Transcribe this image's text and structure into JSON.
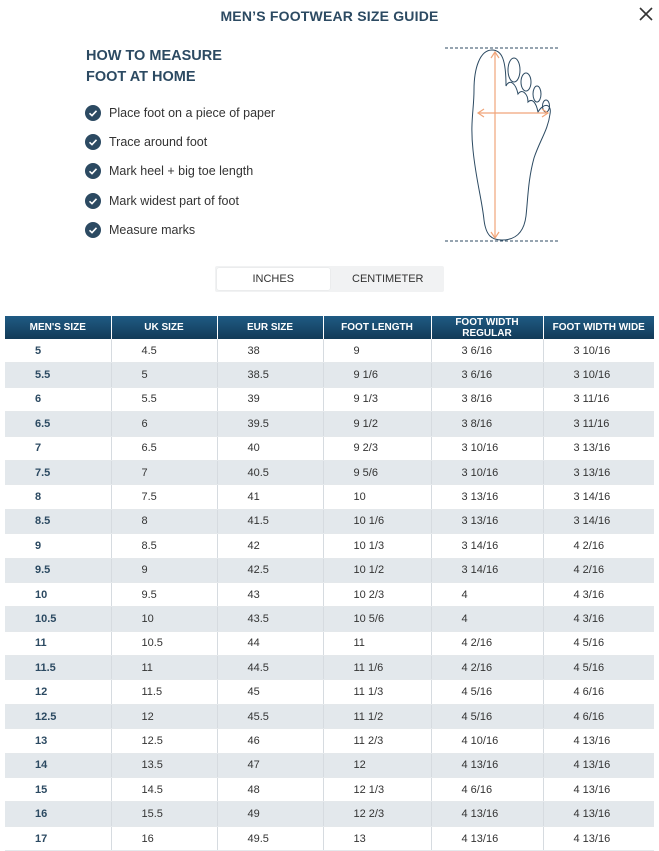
{
  "title": "MEN’S FOOTWEAR SIZE GUIDE",
  "measure": {
    "heading_line1": "HOW TO MEASURE",
    "heading_line2": "FOOT AT HOME",
    "steps": [
      "Place foot on a piece of paper",
      "Trace around foot",
      "Mark heel + big toe length",
      "Mark widest part of foot",
      "Measure marks"
    ]
  },
  "units": {
    "inches": "INCHES",
    "centimeter": "CENTIMETER",
    "selected": "INCHES"
  },
  "icons": {
    "close": "close-icon",
    "check": "check-circle-icon",
    "foot": "foot-diagram-icon"
  },
  "colors": {
    "accent": "#2c4a62",
    "header": "#1a4c70",
    "measure_line": "#f0a57a",
    "row_alt": "#e3e8ec"
  },
  "table": {
    "headers": [
      "MEN'S SIZE",
      "UK SIZE",
      "EUR SIZE",
      "FOOT LENGTH",
      "FOOT WIDTH REGULAR",
      "FOOT WIDTH WIDE"
    ],
    "rows": [
      [
        "5",
        "4.5",
        "38",
        "9",
        "3 6/16",
        "3 10/16"
      ],
      [
        "5.5",
        "5",
        "38.5",
        "9 1/6",
        "3 6/16",
        "3 10/16"
      ],
      [
        "6",
        "5.5",
        "39",
        "9 1/3",
        "3 8/16",
        "3 11/16"
      ],
      [
        "6.5",
        "6",
        "39.5",
        "9 1/2",
        "3 8/16",
        "3 11/16"
      ],
      [
        "7",
        "6.5",
        "40",
        "9 2/3",
        "3 10/16",
        "3 13/16"
      ],
      [
        "7.5",
        "7",
        "40.5",
        "9 5/6",
        "3 10/16",
        "3 13/16"
      ],
      [
        "8",
        "7.5",
        "41",
        "10",
        "3 13/16",
        "3 14/16"
      ],
      [
        "8.5",
        "8",
        "41.5",
        "10 1/6",
        "3 13/16",
        "3 14/16"
      ],
      [
        "9",
        "8.5",
        "42",
        "10 1/3",
        "3 14/16",
        "4 2/16"
      ],
      [
        "9.5",
        "9",
        "42.5",
        "10 1/2",
        "3 14/16",
        "4 2/16"
      ],
      [
        "10",
        "9.5",
        "43",
        "10 2/3",
        "4",
        "4 3/16"
      ],
      [
        "10.5",
        "10",
        "43.5",
        "10 5/6",
        "4",
        "4 3/16"
      ],
      [
        "11",
        "10.5",
        "44",
        "11",
        "4 2/16",
        "4 5/16"
      ],
      [
        "11.5",
        "11",
        "44.5",
        "11 1/6",
        "4 2/16",
        "4 5/16"
      ],
      [
        "12",
        "11.5",
        "45",
        "11 1/3",
        "4 5/16",
        "4 6/16"
      ],
      [
        "12.5",
        "12",
        "45.5",
        "11 1/2",
        "4 5/16",
        "4 6/16"
      ],
      [
        "13",
        "12.5",
        "46",
        "11 2/3",
        "4 10/16",
        "4 13/16"
      ],
      [
        "14",
        "13.5",
        "47",
        "12",
        "4 13/16",
        "4 13/16"
      ],
      [
        "15",
        "14.5",
        "48",
        "12 1/3",
        "4 6/16",
        "4 13/16"
      ],
      [
        "16",
        "15.5",
        "49",
        "12 2/3",
        "4 13/16",
        "4 13/16"
      ],
      [
        "17",
        "16",
        "49.5",
        "13",
        "4 13/16",
        "4 13/16"
      ]
    ]
  }
}
